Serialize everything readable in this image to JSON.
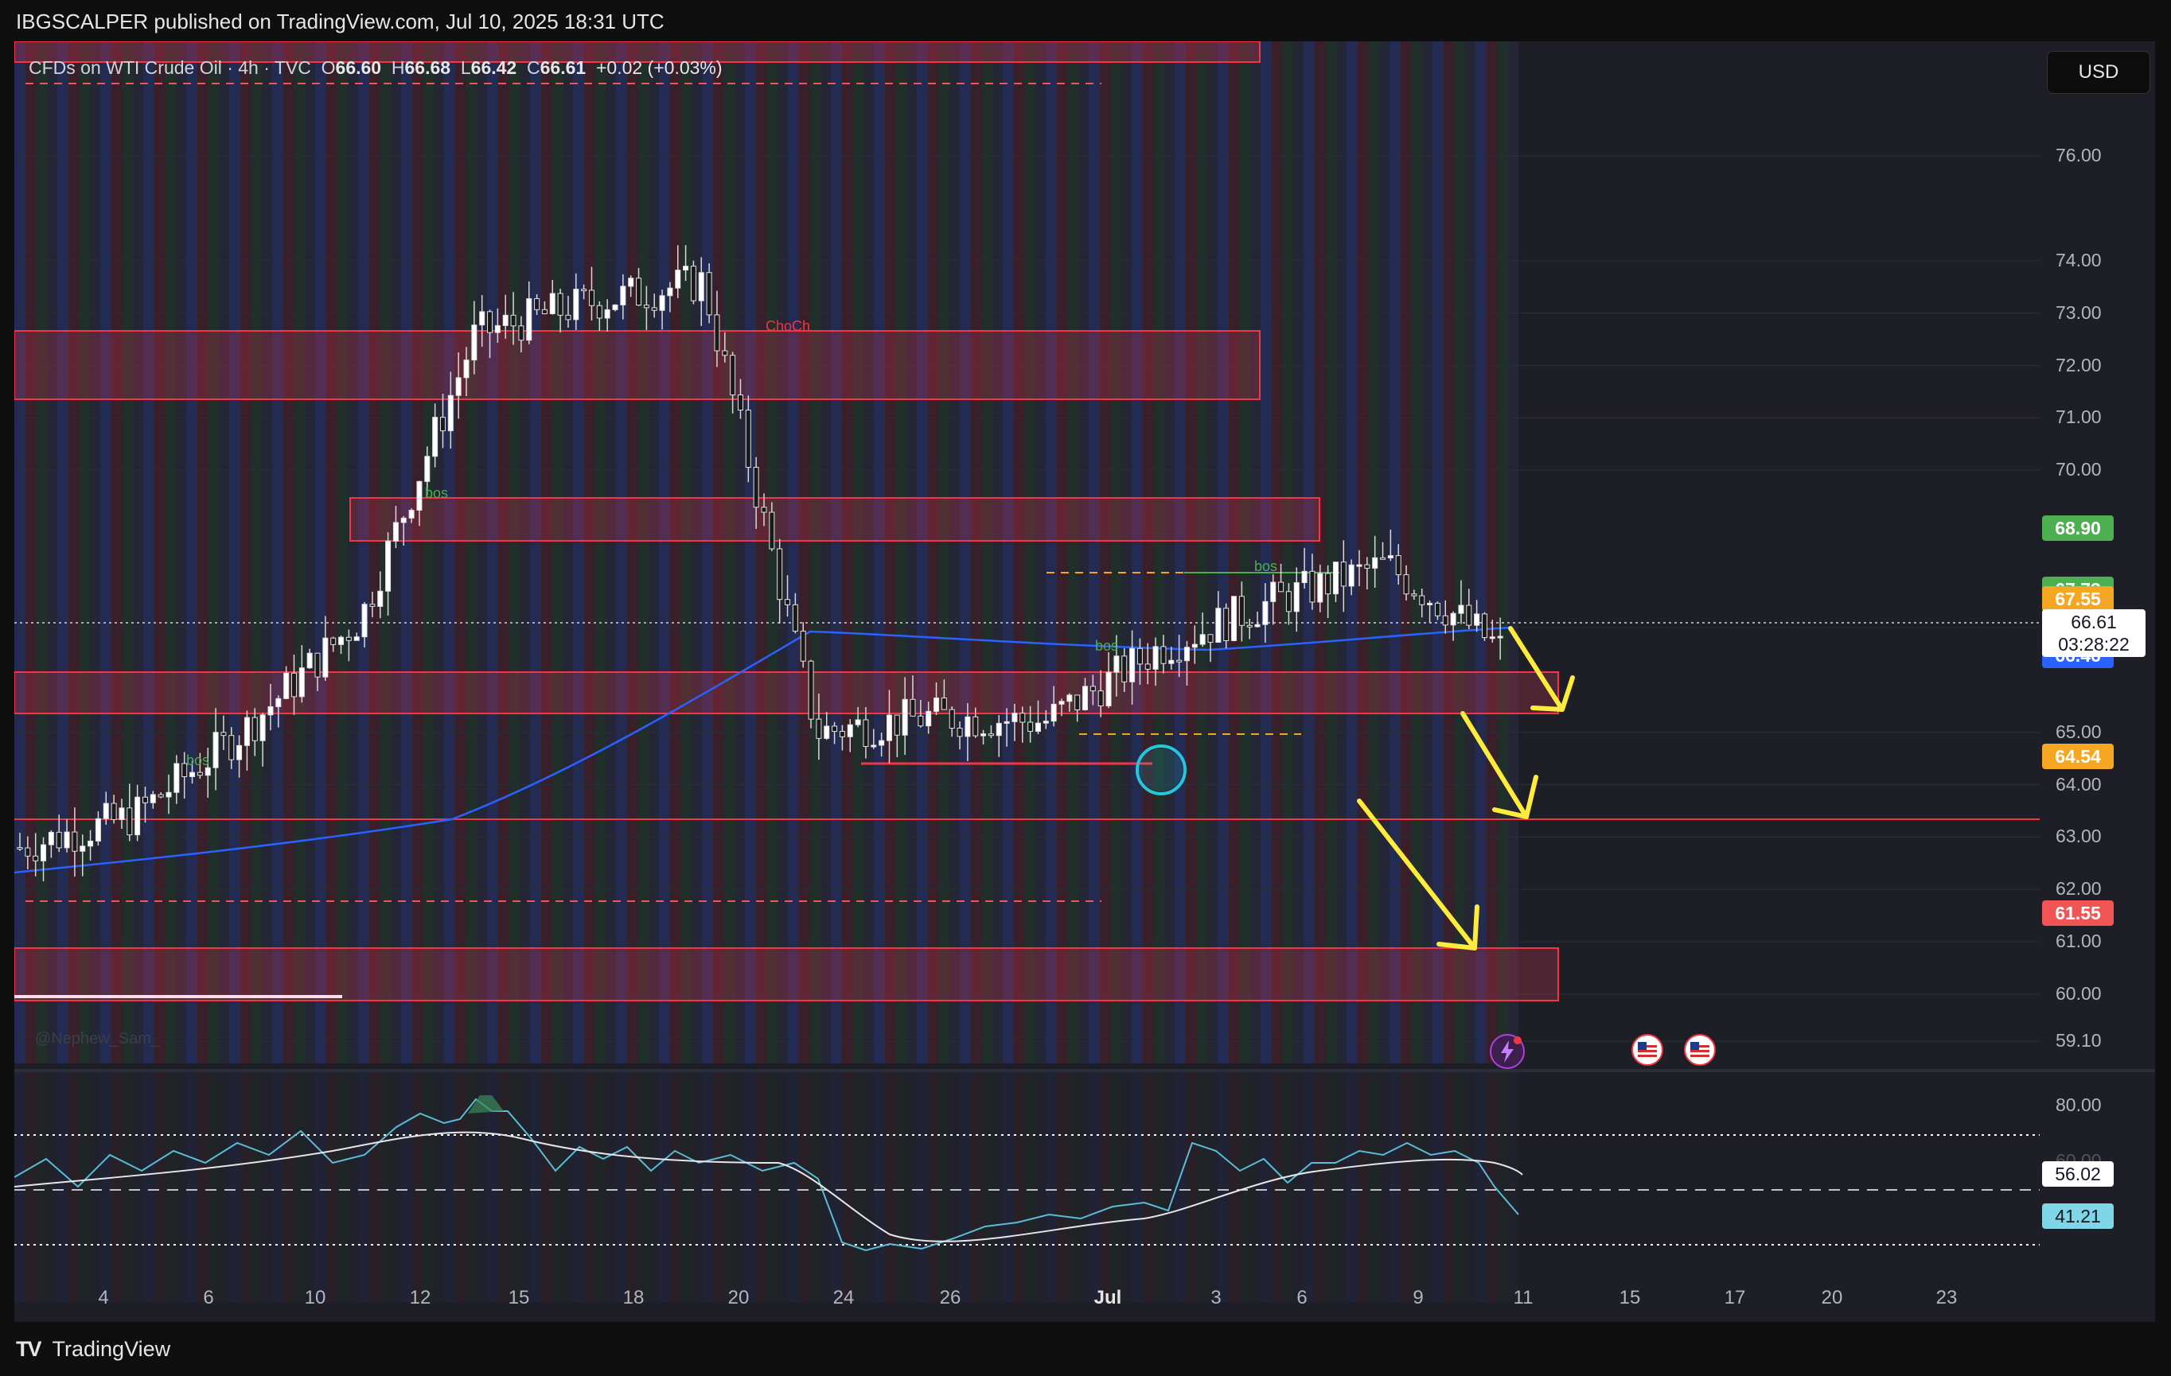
{
  "header": {
    "published_line": "IBGSCALPER published on TradingView.com, Jul 10, 2025 18:31 UTC"
  },
  "legend": {
    "symbol": "CFDs on WTI Crude Oil · 4h · TVC",
    "o_label": "O",
    "o_value": "66.60",
    "h_label": "H",
    "h_value": "66.68",
    "l_label": "L",
    "l_value": "66.42",
    "c_label": "C",
    "c_value": "66.61",
    "change": "+0.02 (+0.03%)"
  },
  "currency_button": "USD",
  "price_axis": {
    "ticks": [
      "76.00",
      "74.00",
      "73.00",
      "72.00",
      "71.00",
      "70.00",
      "67.00",
      "65.00",
      "64.00",
      "63.00",
      "62.00",
      "61.00",
      "60.00",
      "59.10"
    ],
    "badges": [
      {
        "text": "68.90",
        "color": "#4caf50",
        "text_color": "#ffffff"
      },
      {
        "text": "67.73",
        "color": "#4caf50",
        "text_color": "#ffffff"
      },
      {
        "text": "67.55",
        "color": "#f5a623",
        "text_color": "#ffffff"
      },
      {
        "text": "66.46",
        "color": "#2962ff",
        "text_color": "#ffffff"
      },
      {
        "text": "64.54",
        "color": "#f5a623",
        "text_color": "#ffffff"
      },
      {
        "text": "61.55",
        "color": "#f05454",
        "text_color": "#ffffff"
      }
    ],
    "current_price": "66.61",
    "countdown": "03:28:22"
  },
  "time_axis": {
    "labels": [
      "4",
      "6",
      "10",
      "12",
      "15",
      "18",
      "20",
      "24",
      "26",
      "Jul",
      "3",
      "6",
      "9",
      "11",
      "15",
      "17",
      "20",
      "23"
    ],
    "month_label": "Jul"
  },
  "annotations": {
    "bos_1": "bos",
    "bos_2": "bos",
    "bos_3": "bos",
    "bos_4": "bos",
    "choch": "ChoCh",
    "watermark": "@Nephew_Sam_"
  },
  "rsi": {
    "ticks": [
      "80.00",
      "60.00"
    ],
    "badge_ma": "56.02",
    "badge_rsi": "41.21"
  },
  "events": {
    "icons": [
      "lightning-event-icon",
      "us-flag-event-icon",
      "us-flag-event-icon"
    ]
  },
  "footer": {
    "brand": "TradingView"
  },
  "colors": {
    "background": "#1e1f26",
    "zone_fill": "#c0354f",
    "zone_border": "#f23645",
    "ma_line": "#2962ff",
    "arrow": "#ffeb3b",
    "rsi_line": "#5bbcd6"
  },
  "chart_data": {
    "type": "line",
    "description_type": "candlestick",
    "x_labels": [
      "4",
      "6",
      "10",
      "12",
      "15",
      "18",
      "20",
      "24",
      "26",
      "Jul",
      "3",
      "6",
      "9",
      "11"
    ],
    "close_approx": [
      62.8,
      63.4,
      65.1,
      67.2,
      72.6,
      73.2,
      73.6,
      65.0,
      65.3,
      65.2,
      66.6,
      67.5,
      68.2,
      66.6
    ],
    "ylim": [
      59.1,
      77.0
    ],
    "rsi": {
      "ylim": [
        20,
        90
      ],
      "ma": 56.02,
      "value": 41.21
    }
  }
}
